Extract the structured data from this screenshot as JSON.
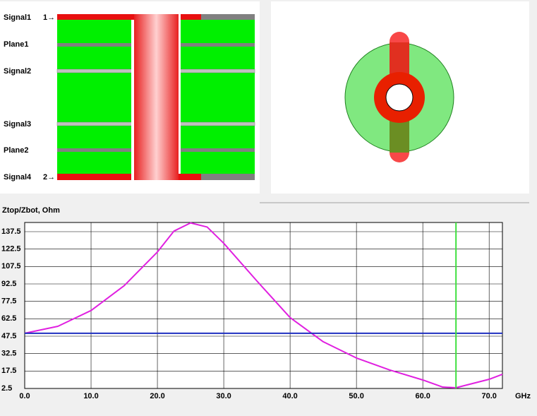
{
  "stackup": {
    "layers": [
      "Signal1",
      "Plane1",
      "Signal2",
      "Signal3",
      "Plane2",
      "Signal4"
    ],
    "ports": [
      "1→",
      "2→"
    ]
  },
  "chart_data": {
    "type": "line",
    "ylabel": "Ztop/Zbot, Ohm",
    "xlabel": "GHz",
    "x": [
      0,
      5,
      10,
      15,
      20,
      22.5,
      25,
      27.5,
      30,
      35,
      40,
      45,
      50,
      55,
      60,
      63,
      65,
      70,
      72
    ],
    "series": [
      {
        "name": "Ztop",
        "color": "#e020e0",
        "values": [
          50,
          56,
          69.6,
          91,
          120,
          138,
          145,
          141.5,
          127.5,
          95,
          63.5,
          42.7,
          28.7,
          18.4,
          9.8,
          3.7,
          3.1,
          10.4,
          14.7
        ]
      },
      {
        "name": "Zbot",
        "color": "#2030c0",
        "values": [
          50,
          50,
          50,
          50,
          50,
          50,
          50,
          50,
          50,
          50,
          50,
          50,
          50,
          50,
          50,
          50,
          50,
          50,
          50
        ]
      }
    ],
    "cursor_x": 65,
    "cursor_color": "#40e040",
    "xlim": [
      0,
      72
    ],
    "ylim": [
      2.5,
      145.4
    ],
    "xticks": [
      {
        "value": 0,
        "label": "0.0"
      },
      {
        "value": 10,
        "label": "10.0"
      },
      {
        "value": 20,
        "label": "20.0"
      },
      {
        "value": 30,
        "label": "30.0"
      },
      {
        "value": 40,
        "label": "40.0"
      },
      {
        "value": 50,
        "label": "50.0"
      },
      {
        "value": 60,
        "label": "60.0"
      },
      {
        "value": 70,
        "label": "70.0"
      }
    ],
    "yticks": [
      2.5,
      17.5,
      32.5,
      47.5,
      62.5,
      77.5,
      92.5,
      107.5,
      122.5,
      137.5
    ],
    "grid": true
  }
}
